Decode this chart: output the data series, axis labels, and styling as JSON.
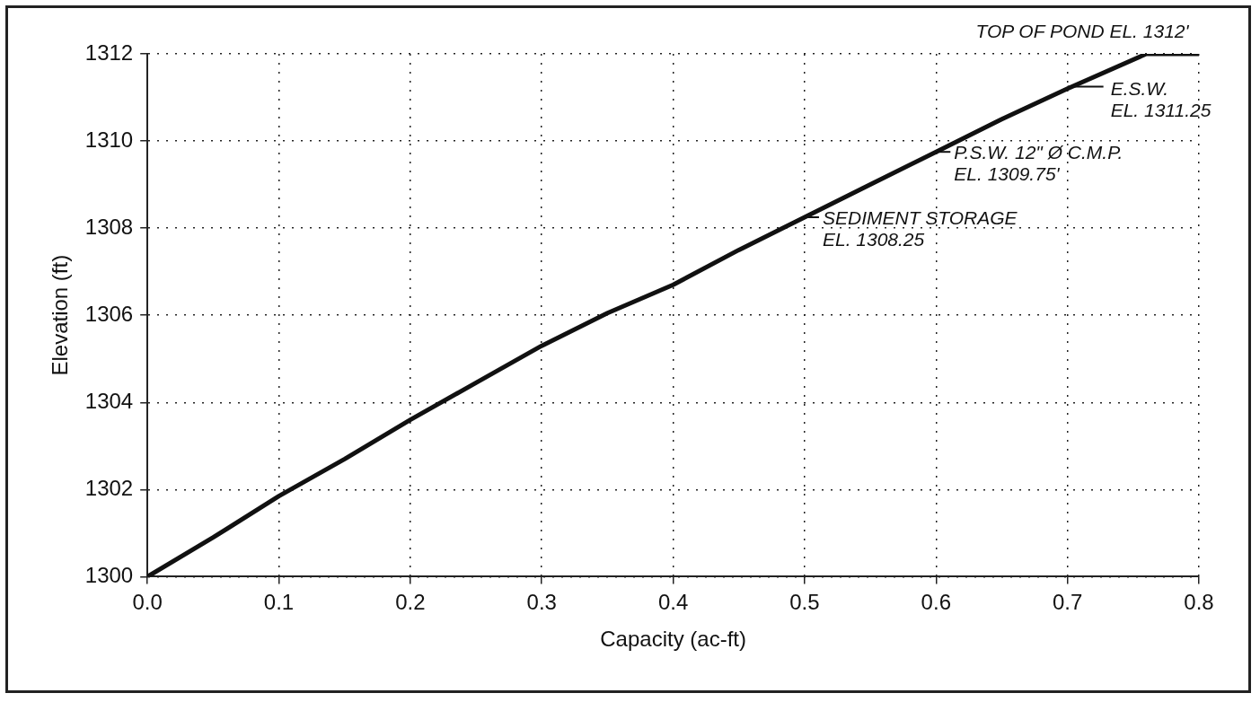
{
  "chart_data": {
    "type": "line",
    "xlabel": "Capacity (ac-ft)",
    "ylabel": "Elevation (ft)",
    "x": [
      0,
      0.05,
      0.1,
      0.15,
      0.2,
      0.25,
      0.3,
      0.35,
      0.4,
      0.45,
      0.5,
      0.55,
      0.6,
      0.65,
      0.7,
      0.76,
      0.8
    ],
    "series": [
      {
        "color": "#111111",
        "values": [
          1300,
          1300.9,
          1301.85,
          1302.7,
          1303.6,
          1304.45,
          1305.3,
          1306.05,
          1306.7,
          1307.5,
          1308.25,
          1309.0,
          1309.75,
          1310.5,
          1311.2,
          1312,
          1312
        ]
      }
    ],
    "xlim": [
      0,
      0.8
    ],
    "xticks": [
      {
        "value": 0,
        "label": "0.0"
      },
      0.1,
      0.2,
      0.3,
      0.4,
      0.5,
      0.6,
      0.7,
      0.8
    ],
    "ylim": [
      1300,
      1312
    ],
    "yticks": [
      1300,
      1302,
      1304,
      1306,
      1308,
      1310,
      1312
    ],
    "grid": true,
    "legend": false,
    "marker": "none",
    "line_style": "solid",
    "annotations": [
      {
        "text": "TOP OF POND EL. 1312'",
        "x": 0.76,
        "y": 1312
      },
      {
        "text": "E.S.W.\nEL. 1311.25",
        "x": 0.7,
        "y": 1311.25
      },
      {
        "text": "P.S.W. 12\" Ø C.M.P.\nEL. 1309.75'",
        "x": 0.6,
        "y": 1309.75
      },
      {
        "text": "SEDIMENT STORAGE\nEL. 1308.25",
        "x": 0.5,
        "y": 1308.25
      }
    ]
  }
}
